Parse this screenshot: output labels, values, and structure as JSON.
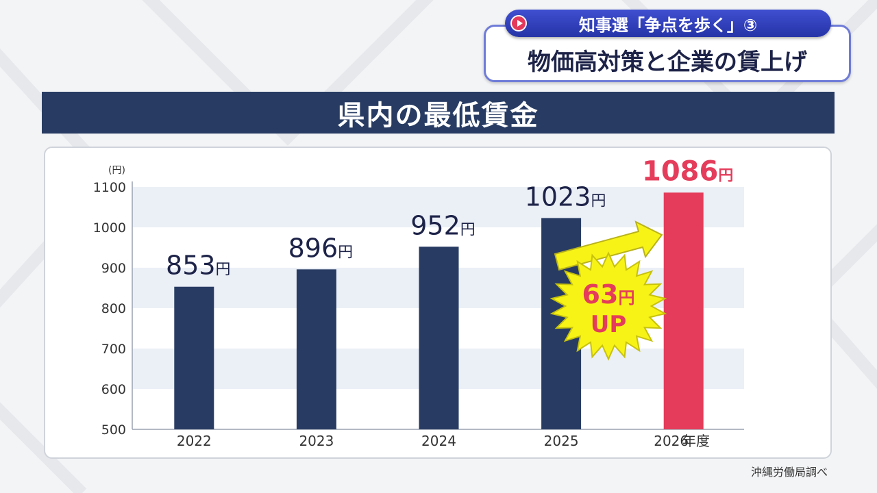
{
  "caption": {
    "tagline": "知事選「争点を歩く」③",
    "headline": "物価高対策と企業の賃上げ"
  },
  "chart_data": {
    "type": "bar",
    "title": "県内の最低賃金",
    "y_unit_label": "(円)",
    "x_unit_label": "年度",
    "categories": [
      "2022",
      "2023",
      "2024",
      "2025",
      "2026"
    ],
    "values": [
      853,
      896,
      952,
      1023,
      1086
    ],
    "value_labels": [
      "853",
      "896",
      "952",
      "1023",
      "1086"
    ],
    "value_suffix": "円",
    "y_ticks": [
      "500",
      "600",
      "700",
      "800",
      "900",
      "1000",
      "1100"
    ],
    "ylim": [
      500,
      1100
    ],
    "grid": "alternating horizontal bands",
    "bar_color": "#283c63",
    "highlight_color": "#e43c5a",
    "highlight_index": 4,
    "annotation": {
      "amount": "63",
      "unit": "円",
      "text": "UP",
      "color": "#e43c5a",
      "burst_color": "#f7f317"
    }
  },
  "source_note": "沖縄労働局調べ"
}
